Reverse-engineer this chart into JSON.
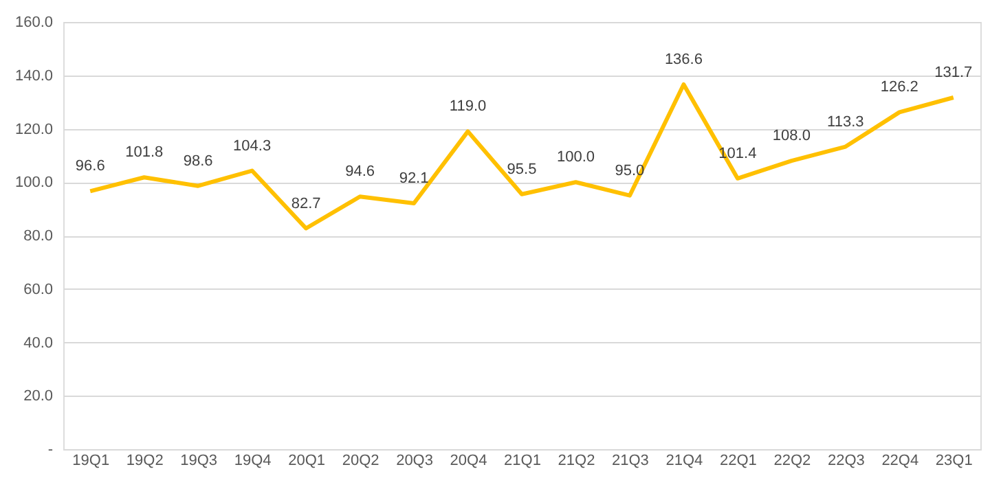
{
  "chart_data": {
    "type": "line",
    "categories": [
      "19Q1",
      "19Q2",
      "19Q3",
      "19Q4",
      "20Q1",
      "20Q2",
      "20Q3",
      "20Q4",
      "21Q1",
      "21Q2",
      "21Q3",
      "21Q4",
      "22Q1",
      "22Q2",
      "22Q3",
      "22Q4",
      "23Q1"
    ],
    "series": [
      {
        "color": "#ffc000",
        "values": [
          96.6,
          101.8,
          98.6,
          104.3,
          82.7,
          94.6,
          92.1,
          119.0,
          95.5,
          100.0,
          95.0,
          136.6,
          101.4,
          108.0,
          113.3,
          126.2,
          131.7
        ]
      }
    ],
    "ylim": [
      0,
      160
    ],
    "yticks": [
      {
        "value": 0,
        "label": "-"
      },
      {
        "value": 20,
        "label": "20.0"
      },
      {
        "value": 40,
        "label": "40.0"
      },
      {
        "value": 60,
        "label": "60.0"
      },
      {
        "value": 80,
        "label": "80.0"
      },
      {
        "value": 100,
        "label": "100.0"
      },
      {
        "value": 120,
        "label": "120.0"
      },
      {
        "value": 140,
        "label": "140.0"
      },
      {
        "value": 160,
        "label": "160.0"
      }
    ],
    "value_labels": [
      "96.6",
      "101.8",
      "98.6",
      "104.3",
      "82.7",
      "94.6",
      "92.1",
      "119.0",
      "95.5",
      "100.0",
      "95.0",
      "136.6",
      "101.4",
      "108.0",
      "113.3",
      "126.2",
      "131.7"
    ],
    "grid": "y",
    "marker": "none",
    "line_style": "solid",
    "legend": false
  }
}
